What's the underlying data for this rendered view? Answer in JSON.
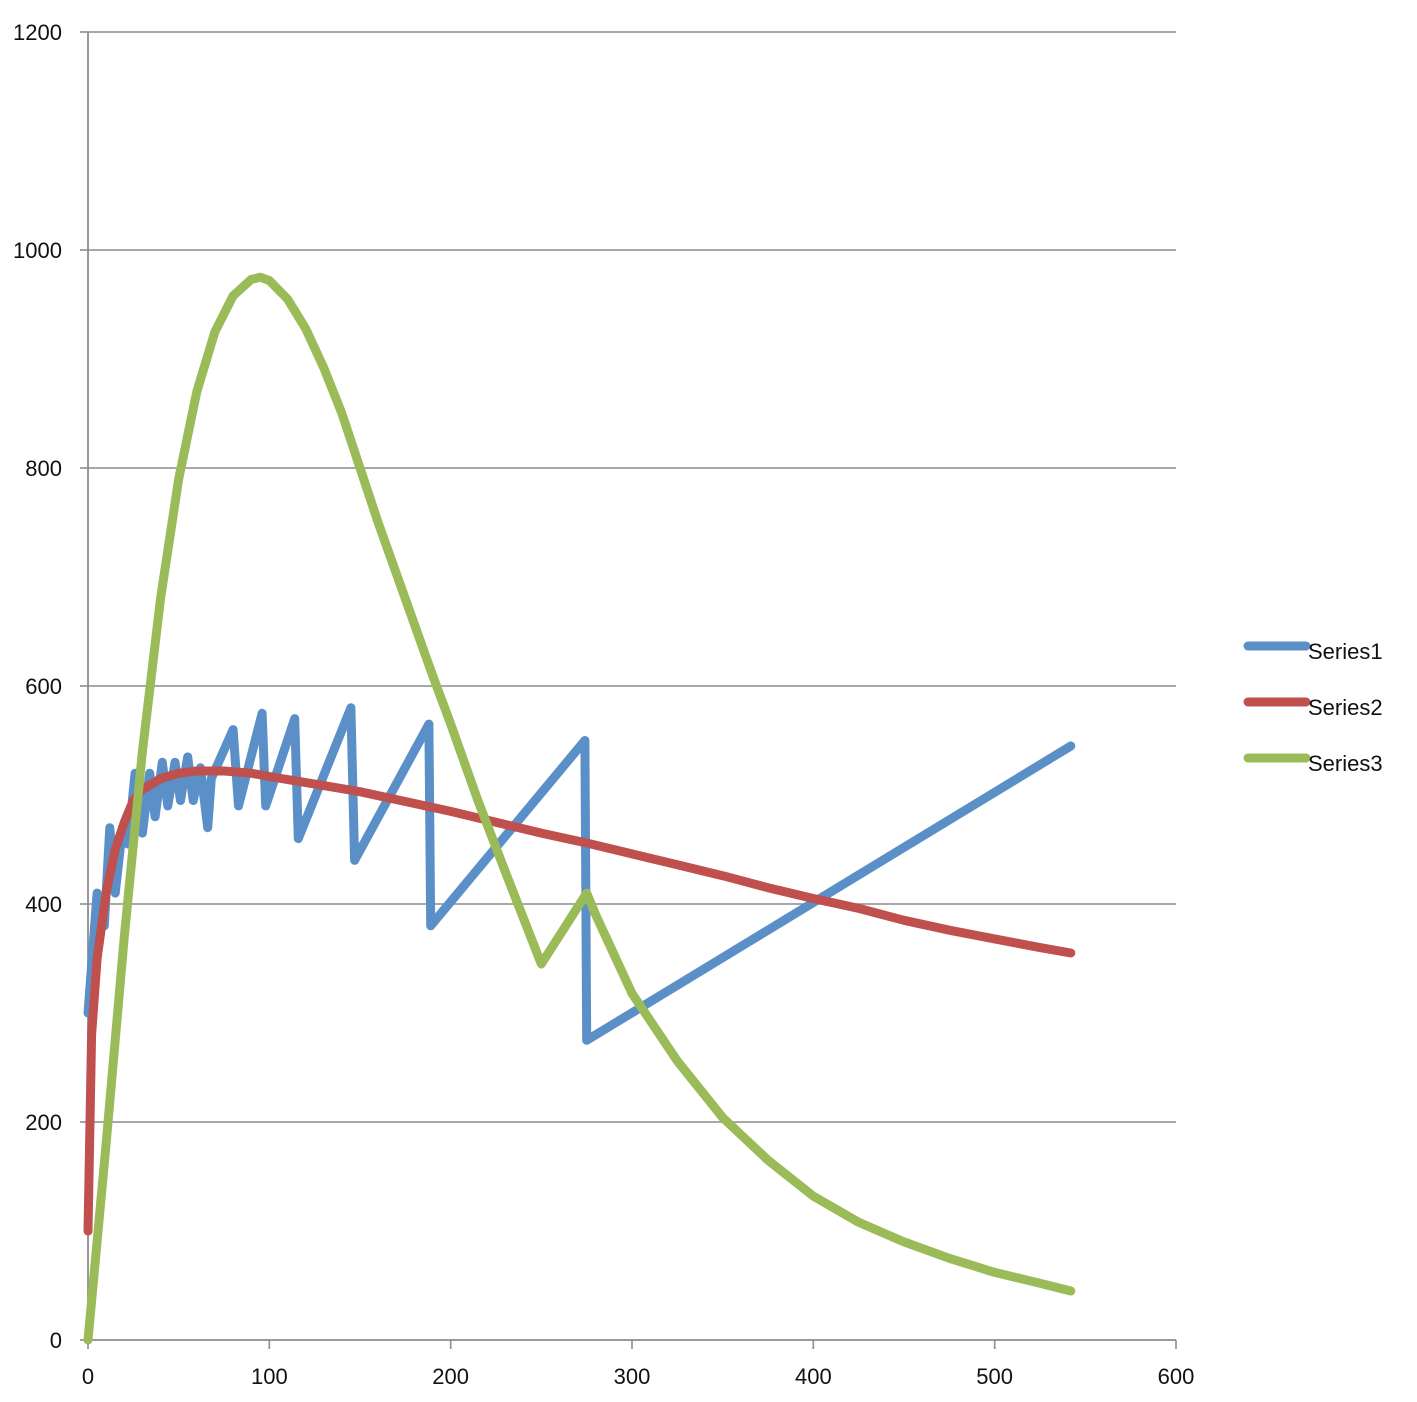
{
  "chart_data": {
    "type": "line",
    "title": "",
    "xlabel": "",
    "ylabel": "",
    "xlim": [
      0,
      600
    ],
    "ylim": [
      0,
      1200
    ],
    "x_ticks": [
      0,
      100,
      200,
      300,
      400,
      500,
      600
    ],
    "y_ticks": [
      0,
      200,
      400,
      600,
      800,
      1000,
      1200
    ],
    "grid": {
      "horizontal": true,
      "vertical": false
    },
    "legend": {
      "placement": "right"
    },
    "series": [
      {
        "name": "Series1",
        "color": "#5b8fc8",
        "points": [
          [
            0,
            300
          ],
          [
            5,
            410
          ],
          [
            9,
            380
          ],
          [
            12,
            470
          ],
          [
            15,
            410
          ],
          [
            19,
            470
          ],
          [
            22,
            455
          ],
          [
            26,
            520
          ],
          [
            30,
            465
          ],
          [
            34,
            520
          ],
          [
            37,
            480
          ],
          [
            41,
            530
          ],
          [
            44,
            490
          ],
          [
            48,
            530
          ],
          [
            51,
            495
          ],
          [
            55,
            535
          ],
          [
            58,
            495
          ],
          [
            62,
            525
          ],
          [
            66,
            470
          ],
          [
            68,
            515
          ],
          [
            80,
            560
          ],
          [
            83,
            490
          ],
          [
            96,
            575
          ],
          [
            98,
            490
          ],
          [
            114,
            570
          ],
          [
            116,
            460
          ],
          [
            145,
            580
          ],
          [
            147,
            440
          ],
          [
            188,
            565
          ],
          [
            189,
            380
          ],
          [
            274,
            550
          ],
          [
            275,
            275
          ],
          [
            542,
            545
          ]
        ]
      },
      {
        "name": "Series2",
        "color": "#c0504d",
        "points": [
          [
            0,
            100
          ],
          [
            2,
            280
          ],
          [
            5,
            350
          ],
          [
            10,
            410
          ],
          [
            15,
            450
          ],
          [
            20,
            475
          ],
          [
            25,
            495
          ],
          [
            30,
            505
          ],
          [
            40,
            515
          ],
          [
            50,
            520
          ],
          [
            60,
            522
          ],
          [
            75,
            522
          ],
          [
            90,
            520
          ],
          [
            100,
            517
          ],
          [
            125,
            510
          ],
          [
            150,
            503
          ],
          [
            175,
            494
          ],
          [
            200,
            485
          ],
          [
            225,
            475
          ],
          [
            250,
            465
          ],
          [
            275,
            456
          ],
          [
            300,
            446
          ],
          [
            325,
            436
          ],
          [
            350,
            426
          ],
          [
            375,
            415
          ],
          [
            400,
            405
          ],
          [
            425,
            396
          ],
          [
            450,
            385
          ],
          [
            475,
            376
          ],
          [
            500,
            368
          ],
          [
            525,
            360
          ],
          [
            542,
            355
          ]
        ]
      },
      {
        "name": "Series3",
        "color": "#9bbb59",
        "points": [
          [
            0,
            0
          ],
          [
            10,
            180
          ],
          [
            20,
            370
          ],
          [
            30,
            540
          ],
          [
            40,
            680
          ],
          [
            50,
            790
          ],
          [
            60,
            870
          ],
          [
            70,
            925
          ],
          [
            80,
            958
          ],
          [
            90,
            973
          ],
          [
            95,
            975
          ],
          [
            100,
            972
          ],
          [
            110,
            955
          ],
          [
            120,
            928
          ],
          [
            130,
            892
          ],
          [
            140,
            850
          ],
          [
            150,
            800
          ],
          [
            160,
            750
          ],
          [
            175,
            680
          ],
          [
            190,
            610
          ],
          [
            200,
            565
          ],
          [
            215,
            495
          ],
          [
            230,
            430
          ],
          [
            250,
            345
          ],
          [
            275,
            410
          ],
          [
            280,
            390
          ],
          [
            300,
            318
          ],
          [
            325,
            256
          ],
          [
            350,
            204
          ],
          [
            375,
            165
          ],
          [
            400,
            132
          ],
          [
            425,
            108
          ],
          [
            450,
            90
          ],
          [
            475,
            75
          ],
          [
            500,
            62
          ],
          [
            525,
            52
          ],
          [
            542,
            45
          ]
        ]
      }
    ]
  }
}
